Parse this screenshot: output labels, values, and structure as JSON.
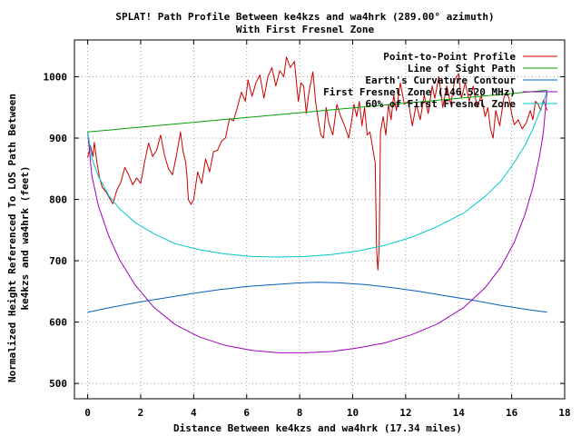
{
  "chart_data": {
    "type": "line",
    "title": "SPLAT! Path Profile Between ke4kzs and wa4hrk (289.00° azimuth)",
    "subtitle": "With First Fresnel Zone",
    "xlabel": "Distance Between ke4kzs and wa4hrk (17.34 miles)",
    "ylabel_line1": "Normalized Height Referenced To LOS Path Between",
    "ylabel_line2": "ke4kzs and wa4hrk (feet)",
    "xlim": [
      -0.5,
      18
    ],
    "ylim": [
      475,
      1060
    ],
    "x_ticks": [
      0,
      2,
      4,
      6,
      8,
      10,
      12,
      14,
      16,
      18
    ],
    "y_ticks": [
      500,
      600,
      700,
      800,
      900,
      1000
    ],
    "grid": true,
    "legend_position": "top-right",
    "series": [
      {
        "name": "Point-to-Point Profile",
        "color": "#cc0000",
        "points": [
          [
            0.0,
            868
          ],
          [
            0.1,
            888
          ],
          [
            0.2,
            870
          ],
          [
            0.25,
            893
          ],
          [
            0.35,
            860
          ],
          [
            0.45,
            835
          ],
          [
            0.55,
            820
          ],
          [
            0.7,
            812
          ],
          [
            0.85,
            800
          ],
          [
            0.95,
            793
          ],
          [
            1.1,
            815
          ],
          [
            1.25,
            828
          ],
          [
            1.4,
            852
          ],
          [
            1.55,
            840
          ],
          [
            1.7,
            824
          ],
          [
            1.85,
            835
          ],
          [
            2.0,
            826
          ],
          [
            2.15,
            862
          ],
          [
            2.3,
            892
          ],
          [
            2.45,
            870
          ],
          [
            2.6,
            880
          ],
          [
            2.75,
            905
          ],
          [
            2.9,
            872
          ],
          [
            3.05,
            850
          ],
          [
            3.2,
            840
          ],
          [
            3.35,
            872
          ],
          [
            3.5,
            910
          ],
          [
            3.6,
            878
          ],
          [
            3.7,
            860
          ],
          [
            3.75,
            835
          ],
          [
            3.8,
            800
          ],
          [
            3.9,
            792
          ],
          [
            4.0,
            800
          ],
          [
            4.15,
            845
          ],
          [
            4.3,
            826
          ],
          [
            4.45,
            866
          ],
          [
            4.6,
            845
          ],
          [
            4.75,
            878
          ],
          [
            4.9,
            880
          ],
          [
            5.05,
            895
          ],
          [
            5.2,
            900
          ],
          [
            5.35,
            932
          ],
          [
            5.5,
            928
          ],
          [
            5.65,
            950
          ],
          [
            5.8,
            975
          ],
          [
            5.95,
            960
          ],
          [
            6.05,
            995
          ],
          [
            6.2,
            968
          ],
          [
            6.35,
            990
          ],
          [
            6.5,
            1003
          ],
          [
            6.65,
            965
          ],
          [
            6.8,
            1000
          ],
          [
            6.95,
            1015
          ],
          [
            7.1,
            985
          ],
          [
            7.25,
            1010
          ],
          [
            7.4,
            1000
          ],
          [
            7.5,
            1032
          ],
          [
            7.65,
            1015
          ],
          [
            7.8,
            1025
          ],
          [
            7.95,
            960
          ],
          [
            8.05,
            990
          ],
          [
            8.15,
            985
          ],
          [
            8.25,
            940
          ],
          [
            8.35,
            975
          ],
          [
            8.5,
            1008
          ],
          [
            8.6,
            960
          ],
          [
            8.7,
            930
          ],
          [
            8.8,
            905
          ],
          [
            8.9,
            900
          ],
          [
            9.0,
            950
          ],
          [
            9.1,
            925
          ],
          [
            9.25,
            905
          ],
          [
            9.4,
            955
          ],
          [
            9.55,
            935
          ],
          [
            9.7,
            920
          ],
          [
            9.85,
            900
          ],
          [
            9.95,
            925
          ],
          [
            10.05,
            955
          ],
          [
            10.15,
            935
          ],
          [
            10.25,
            960
          ],
          [
            10.35,
            920
          ],
          [
            10.45,
            950
          ],
          [
            10.55,
            905
          ],
          [
            10.65,
            910
          ],
          [
            10.75,
            885
          ],
          [
            10.85,
            860
          ],
          [
            10.9,
            720
          ],
          [
            10.95,
            685
          ],
          [
            11.0,
            720
          ],
          [
            11.05,
            910
          ],
          [
            11.15,
            935
          ],
          [
            11.25,
            905
          ],
          [
            11.35,
            955
          ],
          [
            11.45,
            930
          ],
          [
            11.55,
            970
          ],
          [
            11.65,
            945
          ],
          [
            11.8,
            990
          ],
          [
            11.95,
            955
          ],
          [
            12.1,
            960
          ],
          [
            12.25,
            920
          ],
          [
            12.4,
            955
          ],
          [
            12.55,
            930
          ],
          [
            12.7,
            970
          ],
          [
            12.85,
            940
          ],
          [
            13.0,
            985
          ],
          [
            13.1,
            965
          ],
          [
            13.25,
            1000
          ],
          [
            13.4,
            950
          ],
          [
            13.55,
            985
          ],
          [
            13.7,
            955
          ],
          [
            13.85,
            995
          ],
          [
            14.0,
            1005
          ],
          [
            14.1,
            965
          ],
          [
            14.25,
            990
          ],
          [
            14.4,
            960
          ],
          [
            14.55,
            985
          ],
          [
            14.7,
            950
          ],
          [
            14.85,
            970
          ],
          [
            15.0,
            935
          ],
          [
            15.1,
            950
          ],
          [
            15.2,
            915
          ],
          [
            15.3,
            900
          ],
          [
            15.4,
            945
          ],
          [
            15.55,
            920
          ],
          [
            15.7,
            965
          ],
          [
            15.8,
            975
          ],
          [
            15.9,
            965
          ],
          [
            16.0,
            940
          ],
          [
            16.1,
            922
          ],
          [
            16.25,
            930
          ],
          [
            16.4,
            915
          ],
          [
            16.55,
            925
          ],
          [
            16.7,
            945
          ],
          [
            16.8,
            930
          ],
          [
            16.9,
            960
          ],
          [
            17.0,
            955
          ],
          [
            17.1,
            945
          ],
          [
            17.2,
            962
          ],
          [
            17.34,
            945
          ]
        ]
      },
      {
        "name": "Line of Sight Path",
        "color": "#00a000",
        "points": [
          [
            0,
            910
          ],
          [
            17.34,
            978
          ]
        ]
      },
      {
        "name": "Earth's Curvature Contour",
        "color": "#0060c0",
        "points": [
          [
            0,
            616
          ],
          [
            1,
            625
          ],
          [
            2,
            633
          ],
          [
            3,
            640
          ],
          [
            4,
            647
          ],
          [
            5,
            653
          ],
          [
            6,
            658
          ],
          [
            7,
            661
          ],
          [
            8,
            664
          ],
          [
            8.7,
            665
          ],
          [
            9.5,
            664
          ],
          [
            10.5,
            661
          ],
          [
            11.5,
            656
          ],
          [
            12.5,
            650
          ],
          [
            13.5,
            643
          ],
          [
            14.5,
            636
          ],
          [
            15.5,
            628
          ],
          [
            16.5,
            621
          ],
          [
            17.34,
            616
          ]
        ]
      },
      {
        "name": "First Fresnel Zone (146.520 MHz)",
        "color": "#a000c0",
        "points": [
          [
            0,
            910
          ],
          [
            0.15,
            840
          ],
          [
            0.4,
            790
          ],
          [
            0.8,
            740
          ],
          [
            1.2,
            702
          ],
          [
            1.8,
            660
          ],
          [
            2.5,
            624
          ],
          [
            3.3,
            596
          ],
          [
            4.2,
            576
          ],
          [
            5.2,
            562
          ],
          [
            6.2,
            554
          ],
          [
            7.2,
            550
          ],
          [
            8.2,
            550
          ],
          [
            9.2,
            552
          ],
          [
            10.2,
            558
          ],
          [
            11.2,
            566
          ],
          [
            12.2,
            579
          ],
          [
            13.2,
            597
          ],
          [
            14.2,
            624
          ],
          [
            15.0,
            656
          ],
          [
            15.6,
            690
          ],
          [
            16.1,
            730
          ],
          [
            16.5,
            775
          ],
          [
            16.8,
            820
          ],
          [
            17.05,
            870
          ],
          [
            17.2,
            910
          ],
          [
            17.34,
            978
          ]
        ]
      },
      {
        "name": "60% of First Fresnel Zone",
        "color": "#00c8c8",
        "points": [
          [
            0,
            910
          ],
          [
            0.15,
            868
          ],
          [
            0.4,
            838
          ],
          [
            0.8,
            806
          ],
          [
            1.2,
            785
          ],
          [
            1.8,
            762
          ],
          [
            2.5,
            744
          ],
          [
            3.3,
            728
          ],
          [
            4.2,
            718
          ],
          [
            5.2,
            711
          ],
          [
            6.2,
            707
          ],
          [
            7.2,
            706
          ],
          [
            8.2,
            707
          ],
          [
            9.2,
            710
          ],
          [
            10.2,
            716
          ],
          [
            11.2,
            725
          ],
          [
            12.2,
            738
          ],
          [
            13.2,
            756
          ],
          [
            14.2,
            778
          ],
          [
            15.0,
            805
          ],
          [
            15.6,
            830
          ],
          [
            16.1,
            860
          ],
          [
            16.5,
            888
          ],
          [
            16.8,
            915
          ],
          [
            17.05,
            942
          ],
          [
            17.2,
            958
          ],
          [
            17.34,
            978
          ]
        ]
      }
    ]
  }
}
